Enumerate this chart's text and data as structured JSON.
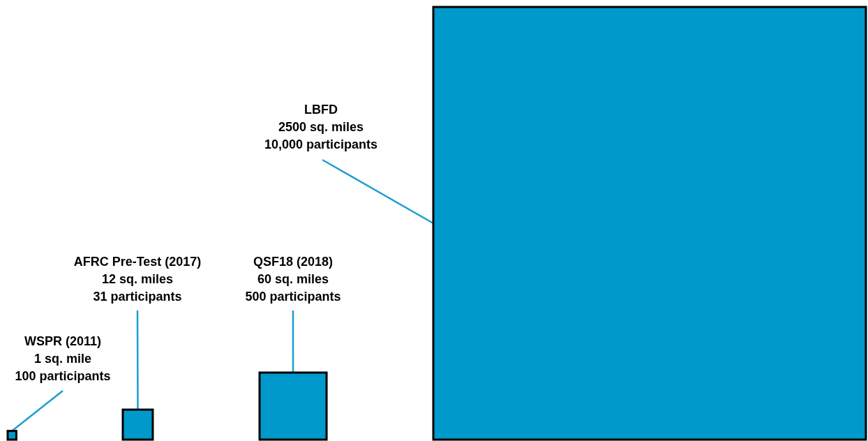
{
  "chart_data": {
    "type": "other",
    "categories": [
      "WSPR (2011)",
      "AFRC Pre-Test (2017)",
      "QSF18 (2018)",
      "LBFD"
    ],
    "values": [
      1,
      12,
      60,
      2500
    ],
    "value_labels": [
      "1 sq. mile",
      "12 sq. miles",
      "60 sq. miles",
      "2500 sq. miles"
    ],
    "annotations": [
      "100 participants",
      "31 participants",
      "500 participants",
      "10,000 participants"
    ],
    "color": "#0099cc"
  }
}
